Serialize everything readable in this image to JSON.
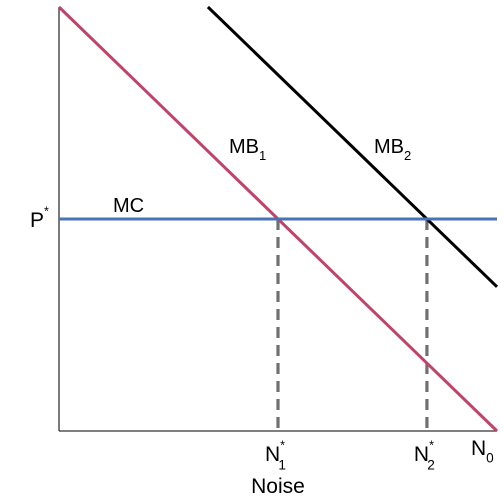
{
  "chart_data": {
    "type": "line",
    "title": "",
    "xlabel": "Noise",
    "ylabel": "",
    "xlim": [
      0,
      10
    ],
    "ylim": [
      0,
      10
    ],
    "grid": false,
    "series": [
      {
        "name": "MB",
        "subscript": "1",
        "color": "#c0446a",
        "x": [
          0,
          10
        ],
        "y": [
          10,
          0
        ]
      },
      {
        "name": "MB",
        "subscript": "2",
        "color": "#000000",
        "x": [
          3.4,
          10
        ],
        "y": [
          10,
          3.4
        ]
      },
      {
        "name": "MC",
        "subscript": "",
        "color": "#4a72b8",
        "x": [
          0,
          10
        ],
        "y": [
          5,
          5
        ]
      }
    ],
    "price_level": {
      "label": "P",
      "superscript": "*",
      "y": 5
    },
    "equilibria": [
      {
        "label": "N",
        "subscript": "1",
        "superscript": "*",
        "x": 5,
        "y": 5
      },
      {
        "label": "N",
        "subscript": "2",
        "superscript": "*",
        "x": 8.4,
        "y": 5
      }
    ],
    "axis_end_label": {
      "label": "N",
      "subscript": "0",
      "x": 10
    },
    "axis_color": "#333333",
    "dashed_color": "#707070"
  }
}
